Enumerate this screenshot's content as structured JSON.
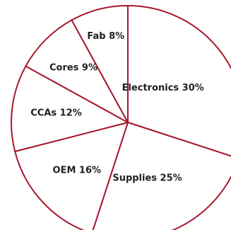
{
  "colors": {
    "slice_fill": "#ffffff",
    "slice_stroke": "#a6192e",
    "label_text": "#231f20"
  },
  "chart_data": {
    "type": "pie",
    "start_angle_deg": 0,
    "direction": "clockwise",
    "slices": [
      {
        "label": "Electronics",
        "value": 30,
        "text": "Electronics 30%"
      },
      {
        "label": "Supplies",
        "value": 25,
        "text": "Supplies 25%"
      },
      {
        "label": "OEM",
        "value": 16,
        "text": "OEM 16%"
      },
      {
        "label": "CCAs",
        "value": 12,
        "text": "CCAs 12%"
      },
      {
        "label": "Cores",
        "value": 9,
        "text": "Cores 9%"
      },
      {
        "label": "Fab",
        "value": 8,
        "text": "Fab 8%"
      }
    ]
  }
}
